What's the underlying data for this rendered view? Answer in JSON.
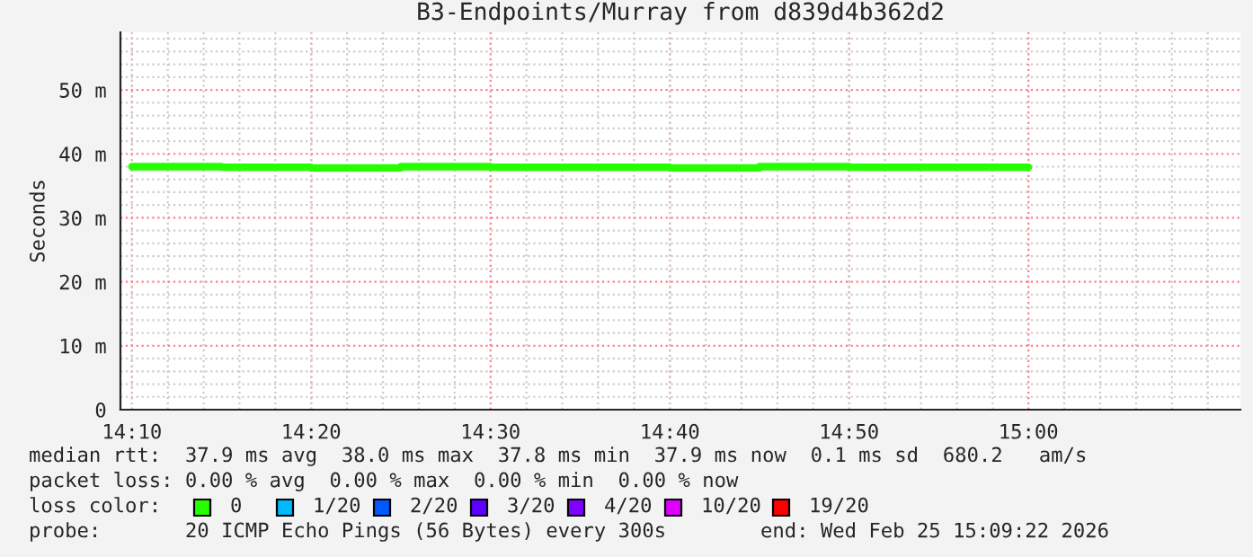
{
  "chart_data": {
    "type": "step",
    "title": "B3-Endpoints/Murray from d839d4b362d2",
    "ylabel": "Seconds",
    "x": [
      14.1667,
      14.25,
      14.3333,
      14.4167,
      14.5,
      14.5833,
      14.6667,
      14.75,
      14.8333,
      14.9167,
      15.0
    ],
    "series": [
      {
        "color": "#26ff00",
        "values": [
          38.0,
          37.9,
          37.8,
          38.0,
          37.9,
          37.9,
          37.8,
          38.0,
          37.9,
          37.9,
          37.9
        ]
      }
    ],
    "xlim": [
      14.156,
      15.197
    ],
    "ylim": [
      0,
      59
    ],
    "xticks": [
      {
        "value": 14.1667,
        "label": "14:10"
      },
      {
        "value": 14.3333,
        "label": "14:20"
      },
      {
        "value": 14.5,
        "label": "14:30"
      },
      {
        "value": 14.6667,
        "label": "14:40"
      },
      {
        "value": 14.8333,
        "label": "14:50"
      },
      {
        "value": 15.0,
        "label": "15:00"
      }
    ],
    "yticks": [
      0,
      {
        "value": 10,
        "label": "10 m"
      },
      {
        "value": 20,
        "label": "20 m"
      },
      {
        "value": 30,
        "label": "30 m"
      },
      {
        "value": 40,
        "label": "40 m"
      },
      {
        "value": 50,
        "label": "50 m"
      }
    ],
    "grid": true,
    "line_style": "solid",
    "annotations": [
      "median rtt:  37.9 ms avg  38.0 ms max  37.8 ms min  37.9 ms now  0.1 ms sd  680.2   am/s",
      "packet loss: 0.00 % avg  0.00 % max  0.00 % min  0.00 % now",
      "loss color:",
      "0",
      "1/20",
      "2/20",
      "3/20",
      "4/20",
      "10/20",
      "19/20",
      "probe:       20 ICMP Echo Pings (56 Bytes) every 300s",
      "end: Wed Feb 25 15:09:22 2026"
    ]
  }
}
